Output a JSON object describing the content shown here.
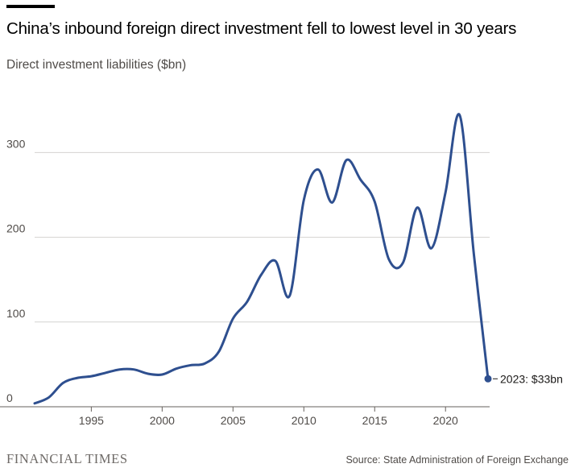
{
  "chart_data": {
    "type": "line",
    "title": "China’s inbound foreign direct investment fell to lowest level in 30 years",
    "subtitle": "Direct investment liabilities ($bn)",
    "xlabel": "",
    "ylabel": "",
    "x_ticks": [
      "1995",
      "2000",
      "2005",
      "2010",
      "2015",
      "2020"
    ],
    "y_ticks": [
      "0",
      "100",
      "200",
      "300"
    ],
    "xlim": [
      1991,
      2023
    ],
    "ylim": [
      0,
      345
    ],
    "grid": "horizontal",
    "series": [
      {
        "x": [
          1991,
          1992,
          1993,
          1994,
          1995,
          1996,
          1997,
          1998,
          1999,
          2000,
          2001,
          2002,
          2003,
          2004,
          2005,
          2006,
          2007,
          2008,
          2009,
          2010,
          2011,
          2012,
          2013,
          2014,
          2015,
          2016,
          2017,
          2018,
          2019,
          2020,
          2021,
          2022,
          2023
        ],
        "values": [
          4,
          11,
          28,
          34,
          36,
          40,
          44,
          44,
          39,
          38,
          45,
          49,
          51,
          65,
          104,
          124,
          156,
          172,
          131,
          244,
          280,
          241,
          291,
          268,
          242,
          174,
          170,
          235,
          187,
          253,
          344,
          180,
          33
        ]
      }
    ],
    "line_color": "#2e4f8f",
    "annotation": "2023: $33bn"
  },
  "footer": {
    "logo": "FINANCIAL TIMES",
    "source": "Source: State Administration of Foreign Exchange"
  }
}
